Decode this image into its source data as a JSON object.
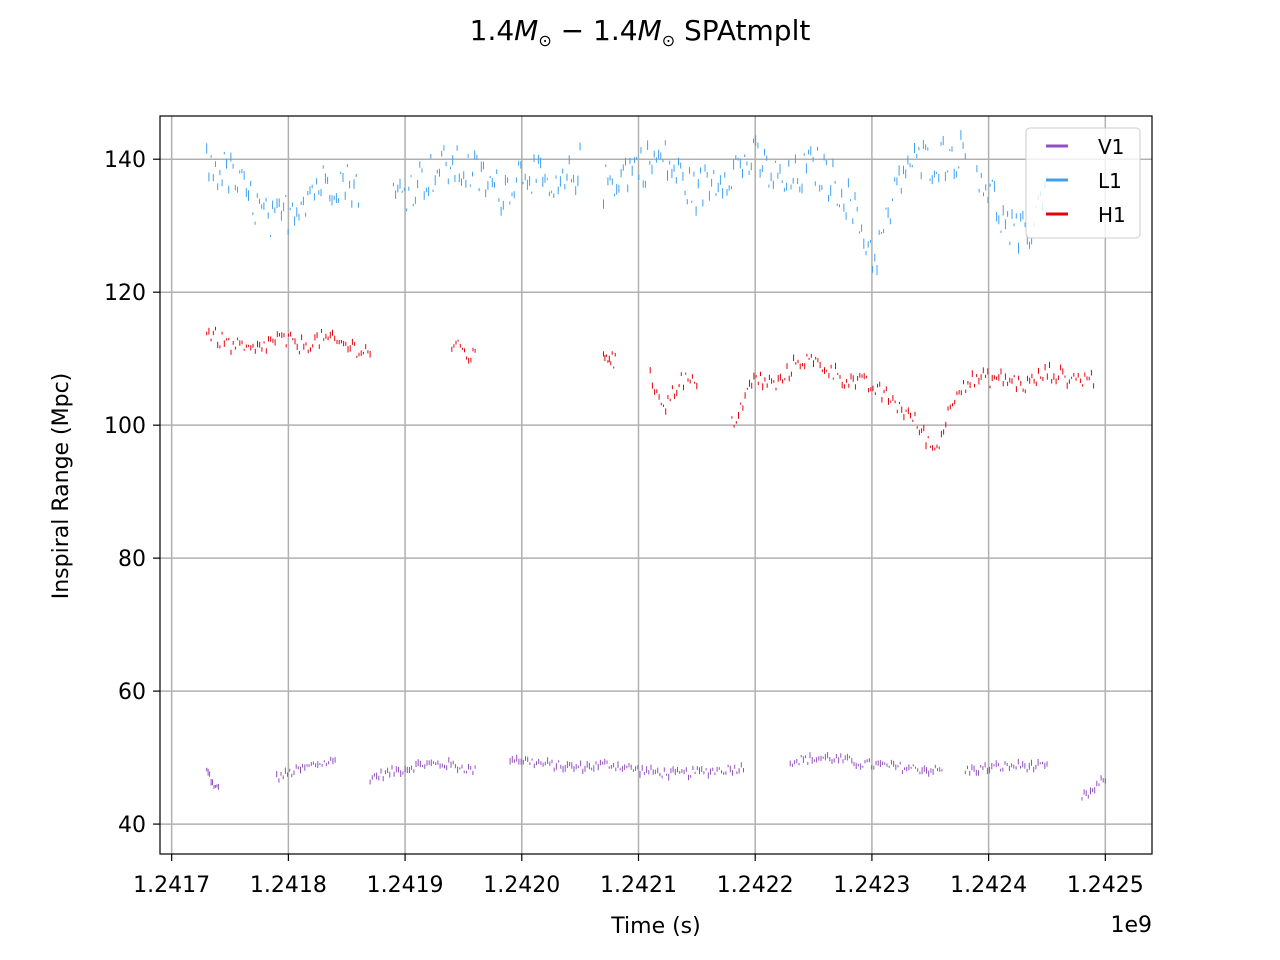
{
  "title": {
    "num1": "1.4",
    "m1": "M",
    "sun1": "⊙",
    "dash": " − ",
    "num2": "1.4",
    "m2": "M",
    "sun2": "⊙",
    "rest": " SPAtmplt"
  },
  "chart_data": {
    "type": "scatter",
    "xlabel": "Time (s)",
    "ylabel": "Inspiral Range (Mpc)",
    "x_offset_label": "1e9",
    "xlim": [
      1241690000.0,
      1242540000.0
    ],
    "ylim": [
      35.5,
      146.5
    ],
    "x_ticks": [
      1241700000.0,
      1241800000.0,
      1241900000.0,
      1242000000.0,
      1242100000.0,
      1242200000.0,
      1242300000.0,
      1242400000.0,
      1242500000.0
    ],
    "x_tick_labels": [
      "1.2417",
      "1.2418",
      "1.2419",
      "1.2420",
      "1.2421",
      "1.2422",
      "1.2423",
      "1.2424",
      "1.2425"
    ],
    "y_ticks": [
      40,
      60,
      80,
      100,
      120,
      140
    ],
    "y_tick_labels": [
      "40",
      "60",
      "80",
      "100",
      "120",
      "140"
    ],
    "grid": true,
    "legend_position": "top-right",
    "series": [
      {
        "name": "V1",
        "color": "#9150c0",
        "segments": [
          {
            "t0": 1241730000.0,
            "t1": 1241740000.0,
            "v": [
              48,
              47,
              45,
              46
            ]
          },
          {
            "t0": 1241790000.0,
            "t1": 1241840000.0,
            "v": [
              47,
              48,
              49,
              49.5
            ]
          },
          {
            "t0": 1241870000.0,
            "t1": 1241960000.0,
            "v": [
              47,
              48,
              49,
              49,
              48
            ]
          },
          {
            "t0": 1241990000.0,
            "t1": 1242190000.0,
            "v": [
              50,
              49,
              48.5,
              49,
              48,
              47.5,
              48,
              48.5
            ]
          },
          {
            "t0": 1242230000.0,
            "t1": 1242360000.0,
            "v": [
              49.5,
              50,
              49,
              48.5,
              48
            ]
          },
          {
            "t0": 1242380000.0,
            "t1": 1242450000.0,
            "v": [
              48,
              48.5,
              48.8,
              48.5
            ]
          },
          {
            "t0": 1242480000.0,
            "t1": 1242500000.0,
            "v": [
              44,
              45,
              47
            ]
          }
        ]
      },
      {
        "name": "L1",
        "color": "#3fa0ef",
        "segments": [
          {
            "t0": 1241730000.0,
            "t1": 1241860000.0,
            "v": [
              139,
              138,
              134,
              130,
              133,
              136,
              137,
              136
            ]
          },
          {
            "t0": 1241890000.0,
            "t1": 1242050000.0,
            "v": [
              134,
              137,
              139,
              138,
              135,
              139,
              134,
              139
            ]
          },
          {
            "t0": 1242070000.0,
            "t1": 1242380000.0,
            "v": [
              136,
              139,
              140,
              135,
              138,
              140,
              136,
              139,
              135,
              125,
              139,
              140,
              141
            ]
          },
          {
            "t0": 1242390000.0,
            "t1": 1242450000.0,
            "v": [
              139,
              135,
              130,
              128,
              130,
              138
            ]
          }
        ]
      },
      {
        "name": "H1",
        "color": "#e8000b",
        "segments": [
          {
            "t0": 1241730000.0,
            "t1": 1241870000.0,
            "v": [
              114,
              112,
              111,
              113,
              112,
              113,
              112,
              111
            ]
          },
          {
            "t0": 1241940000.0,
            "t1": 1241960000.0,
            "v": [
              112,
              111,
              110
            ]
          },
          {
            "t0": 1242070000.0,
            "t1": 1242080000.0,
            "v": [
              111,
              109.5
            ]
          },
          {
            "t0": 1242110000.0,
            "t1": 1242150000.0,
            "v": [
              107,
              103,
              107,
              106
            ]
          },
          {
            "t0": 1242180000.0,
            "t1": 1242490000.0,
            "v": [
              100,
              107,
              106,
              110,
              109,
              107,
              106,
              104,
              101,
              96,
              106,
              107,
              107,
              106,
              108,
              107,
              107
            ]
          }
        ]
      }
    ]
  }
}
